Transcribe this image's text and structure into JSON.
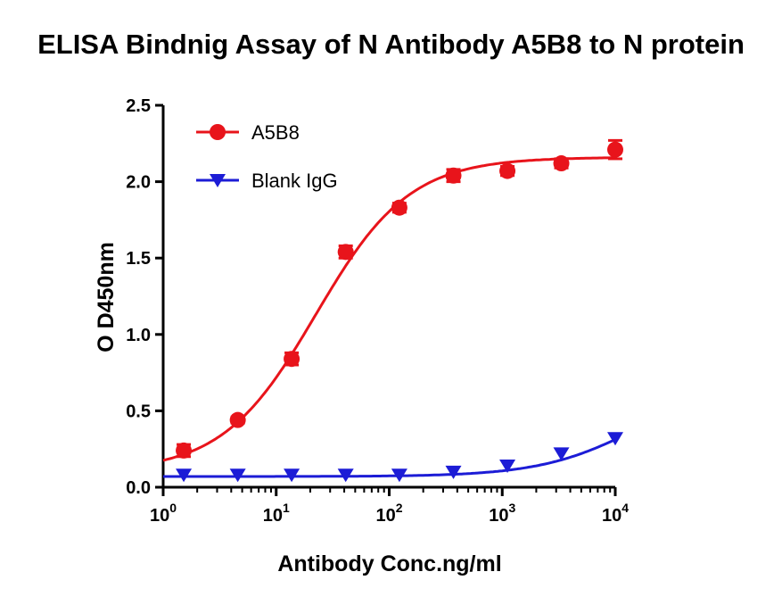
{
  "chart_data": {
    "type": "scatter",
    "title": "ELISA Bindnig Assay of N Antibody A5B8 to N protein",
    "xlabel": "Antibody Conc.ng/ml",
    "ylabel": "O D450nm",
    "x_scale": "log",
    "xlim": [
      1,
      10000
    ],
    "ylim": [
      0,
      2.5
    ],
    "x_ticks": [
      {
        "value": 1,
        "base": "10",
        "exp": "0"
      },
      {
        "value": 10,
        "base": "10",
        "exp": "1"
      },
      {
        "value": 100,
        "base": "10",
        "exp": "2"
      },
      {
        "value": 1000,
        "base": "10",
        "exp": "3"
      },
      {
        "value": 10000,
        "base": "10",
        "exp": "4"
      }
    ],
    "y_ticks": [
      "0.0",
      "0.5",
      "1.0",
      "1.5",
      "2.0",
      "2.5"
    ],
    "legend_position": "top-left",
    "series": [
      {
        "name": "A5B8",
        "color": "#e8141b",
        "marker": "circle",
        "x": [
          1.52,
          4.57,
          13.7,
          41.2,
          123,
          370,
          1111,
          3333,
          10000
        ],
        "y": [
          0.24,
          0.44,
          0.84,
          1.54,
          1.83,
          2.04,
          2.07,
          2.12,
          2.21
        ],
        "error": [
          0.04,
          0.02,
          0.04,
          0.04,
          0.03,
          0.04,
          0.03,
          0.03,
          0.06
        ],
        "fit": {
          "bottom": 0.1,
          "top": 2.16,
          "ec50": 22.4,
          "hill": 1.05
        }
      },
      {
        "name": "Blank IgG",
        "color": "#1c1cd6",
        "marker": "triangle-down",
        "x": [
          1.52,
          4.57,
          13.7,
          41.2,
          123,
          370,
          1111,
          3333,
          10000
        ],
        "y": [
          0.08,
          0.08,
          0.08,
          0.08,
          0.08,
          0.1,
          0.14,
          0.22,
          0.32
        ],
        "error": [
          0,
          0,
          0,
          0,
          0,
          0,
          0,
          0,
          0
        ],
        "fit": {
          "bottom": 0.07,
          "top": 0.7,
          "ec50": 16000,
          "hill": 1.0
        }
      }
    ]
  }
}
